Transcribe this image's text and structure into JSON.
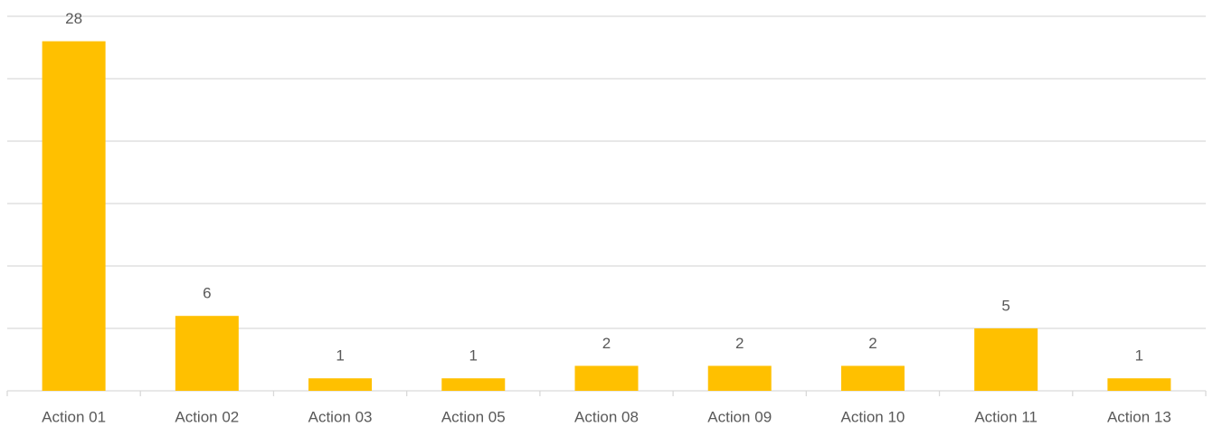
{
  "chart_data": {
    "type": "bar",
    "categories": [
      "Action 01",
      "Action 02",
      "Action 03",
      "Action 05",
      "Action 08",
      "Action 09",
      "Action 10",
      "Action 11",
      "Action 13"
    ],
    "values": [
      28,
      6,
      1,
      1,
      2,
      2,
      2,
      5,
      1
    ],
    "color": "#ffc000",
    "ylim": [
      0,
      30
    ],
    "yticks": [
      0,
      5,
      10,
      15,
      20,
      25,
      30
    ],
    "grid": true
  }
}
